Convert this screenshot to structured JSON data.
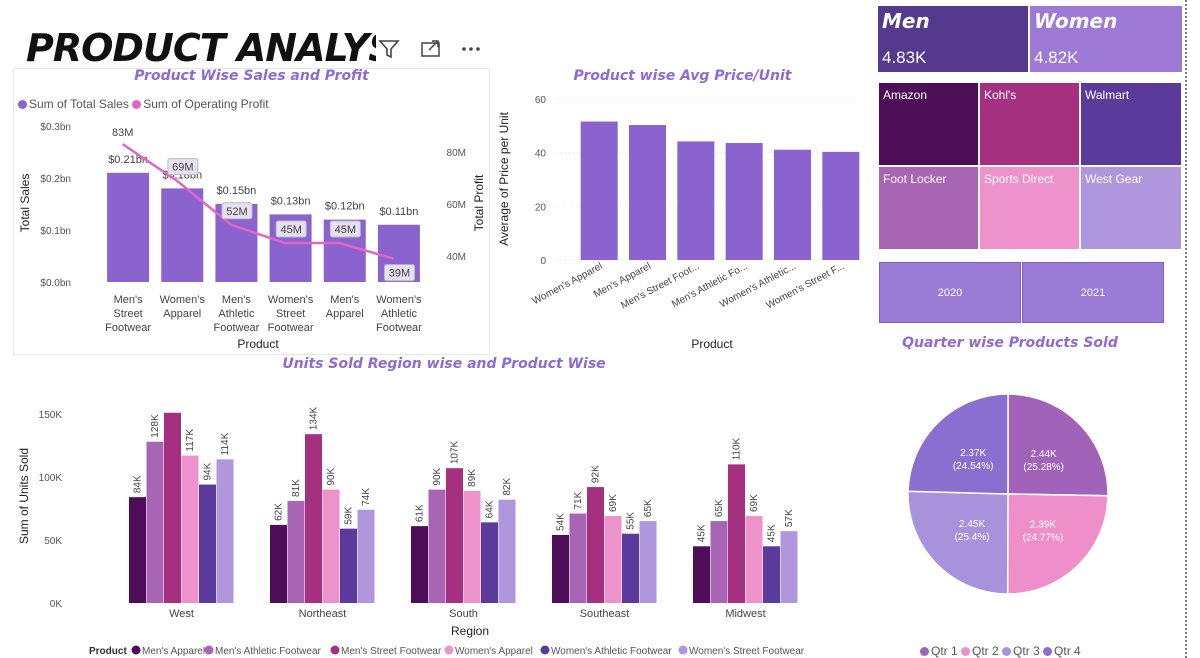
{
  "page": {
    "title": "PRODUCT ANALYS",
    "filter_icon": "filter-icon",
    "focus_icon": "focus-mode-icon",
    "more_icon": "more-options-icon"
  },
  "cards": [
    {
      "label": "Men",
      "value": "4.83K",
      "color": "#55398f"
    },
    {
      "label": "Women",
      "value": "4.82K",
      "color": "#9e79d6"
    }
  ],
  "retailers": [
    {
      "name": "Amazon",
      "color": "#4e0d57"
    },
    {
      "name": "Kohl's",
      "color": "#a5307f"
    },
    {
      "name": "Walmart",
      "color": "#5a3a9a"
    },
    {
      "name": "Foot Locker",
      "color": "#a865b3"
    },
    {
      "name": "Sports Direct",
      "color": "#ee92cb"
    },
    {
      "name": "West Gear",
      "color": "#b096dc"
    }
  ],
  "year_slicer": [
    "2020",
    "2021"
  ],
  "colors": {
    "bar_purple": "#8b63cf",
    "line_pink": "#e066c6",
    "title_purple": "#8f6ad1"
  },
  "sales_profit": {
    "title": "Product Wise Sales and Profit",
    "legend": [
      {
        "label": "Sum of Total Sales",
        "color": "#8b63cf"
      },
      {
        "label": "Sum of Operating Profit",
        "color": "#e066c6"
      }
    ],
    "y_left_label": "Total Sales",
    "y_right_label": "Total Profit",
    "x_label": "Product",
    "y_left_ticks": [
      "$0.0bn",
      "$0.1bn",
      "$0.2bn",
      "$0.3bn"
    ],
    "y_right_ticks": [
      "40M",
      "60M",
      "80M"
    ]
  },
  "avg_price": {
    "title": "Product wise Avg Price/Unit",
    "y_label": "Average of Price per Unit",
    "x_label": "Product",
    "y_ticks": [
      "0",
      "20",
      "40",
      "60"
    ]
  },
  "units_region": {
    "title": "Units Sold Region wise and Product Wise",
    "y_label": "Sum of Units Sold",
    "x_label": "Region",
    "y_ticks": [
      "0K",
      "50K",
      "100K",
      "150K"
    ],
    "legend_title": "Product"
  },
  "quarter": {
    "title": "Quarter wise Products Sold",
    "legend": [
      {
        "label": "Qtr 1",
        "color": "#a163b9"
      },
      {
        "label": "Qtr 2",
        "color": "#ef8fca"
      },
      {
        "label": "Qtr 3",
        "color": "#a992dc"
      },
      {
        "label": "Qtr 4",
        "color": "#8b6fd0"
      }
    ]
  },
  "chart_data": [
    {
      "type": "bar",
      "title": "Product Wise Sales and Profit",
      "xlabel": "Product",
      "ylabel": "Total Sales",
      "categories": [
        [
          "Men's",
          "Street",
          "Footwear"
        ],
        [
          "Women's",
          "Apparel"
        ],
        [
          "Men's",
          "Athletic",
          "Footwear"
        ],
        [
          "Women's",
          "Street",
          "Footwear"
        ],
        [
          "Men's",
          "Apparel"
        ],
        [
          "Women's",
          "Athletic",
          "Footwear"
        ]
      ],
      "series": [
        {
          "name": "Sum of Total Sales",
          "values": [
            0.21,
            0.18,
            0.15,
            0.13,
            0.12,
            0.11
          ],
          "labels": [
            "$0.21bn",
            "$0.18bn",
            "$0.15bn",
            "$0.13bn",
            "$0.12bn",
            "$0.11bn"
          ]
        },
        {
          "name": "Sum of Operating Profit",
          "values": [
            83,
            69,
            52,
            45,
            45,
            39
          ],
          "labels": [
            "83M",
            "69M",
            "52M",
            "45M",
            "45M",
            "39M"
          ]
        }
      ],
      "ylim": [
        0,
        0.3
      ],
      "y2lim": [
        30,
        90
      ]
    },
    {
      "type": "bar",
      "title": "Product wise Avg Price/Unit",
      "xlabel": "Product",
      "ylabel": "Average of Price per Unit",
      "categories": [
        "Women's Apparel",
        "Men's Apparel",
        "Men's Street Foot...",
        "Men's Athletic Fo...",
        "Women's Athletic...",
        "Women's Street F..."
      ],
      "values": [
        51.6,
        50.3,
        44.2,
        43.6,
        41.1,
        40.3
      ],
      "ylim": [
        0,
        60
      ]
    },
    {
      "type": "bar",
      "title": "Units Sold Region wise and Product Wise",
      "xlabel": "Region",
      "ylabel": "Sum of Units Sold",
      "categories": [
        "West",
        "Northeast",
        "South",
        "Southeast",
        "Midwest"
      ],
      "series": [
        {
          "name": "Men's Apparel",
          "color": "#4e0d57",
          "values": [
            84,
            62,
            61,
            54,
            45
          ]
        },
        {
          "name": "Men's Athletic Footwear",
          "color": "#a865b3",
          "values": [
            128,
            81,
            90,
            71,
            65
          ]
        },
        {
          "name": "Men's Street Footwear",
          "color": "#a5307f",
          "values": [
            151,
            134,
            107,
            92,
            110
          ]
        },
        {
          "name": "Women's Apparel",
          "color": "#ee92cb",
          "values": [
            117,
            90,
            89,
            69,
            69
          ]
        },
        {
          "name": "Women's Athletic Footwear",
          "color": "#5a3a9a",
          "values": [
            94,
            59,
            64,
            55,
            45
          ]
        },
        {
          "name": "Women's Street Footwear",
          "color": "#b096dc",
          "values": [
            114,
            74,
            82,
            65,
            57
          ]
        }
      ],
      "value_suffix": "K",
      "ylim": [
        0,
        150
      ]
    },
    {
      "type": "pie",
      "title": "Quarter wise Products Sold",
      "categories": [
        "Qtr 1",
        "Qtr 2",
        "Qtr 3",
        "Qtr 4"
      ],
      "values": [
        2.44,
        2.39,
        2.45,
        2.37
      ],
      "labels": [
        [
          "2.44K",
          "(25.28%)"
        ],
        [
          "2.39K",
          "(24.77%)"
        ],
        [
          "2.45K",
          "(25.4%)"
        ],
        [
          "2.37K",
          "(24.54%)"
        ]
      ]
    }
  ]
}
